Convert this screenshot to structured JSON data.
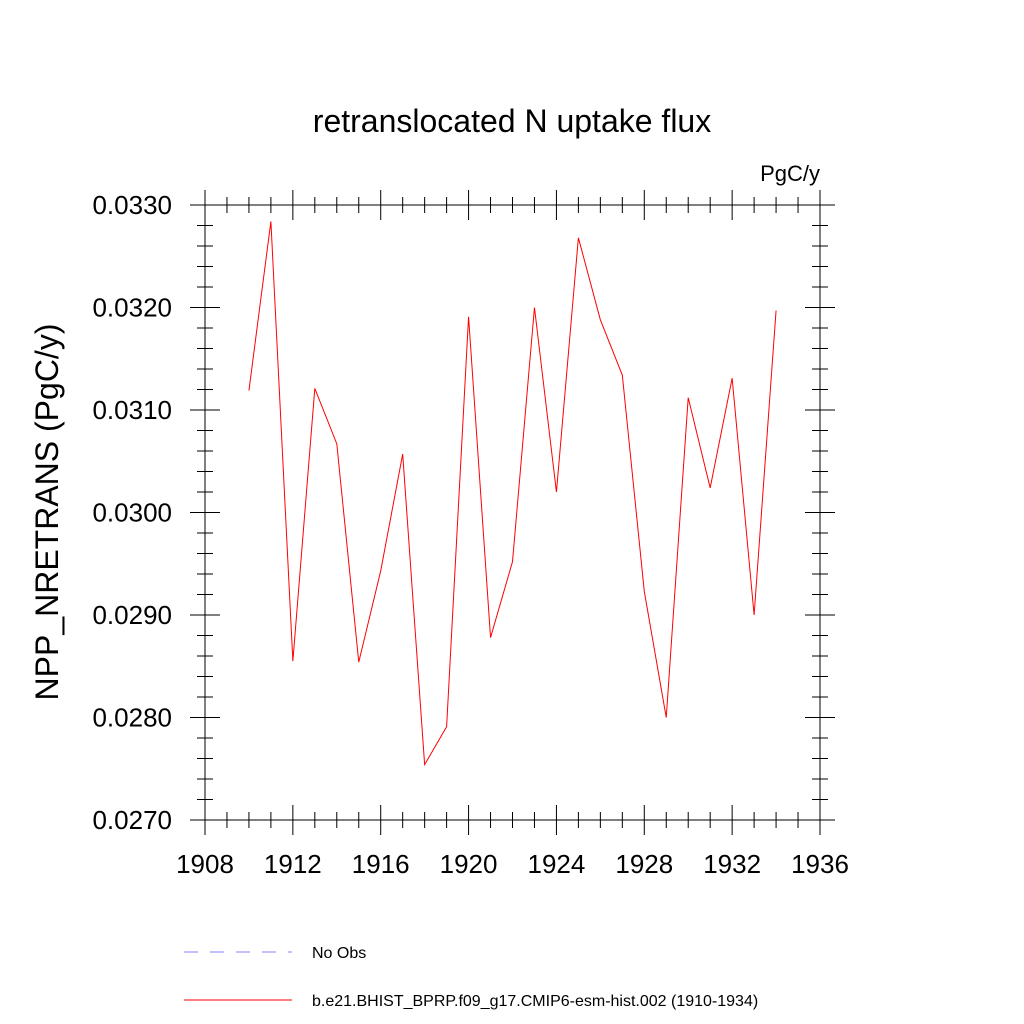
{
  "chart_data": {
    "type": "line",
    "title": "retranslocated N uptake flux",
    "units_label": "PgC/y",
    "xlabel": "",
    "ylabel": "NPP_NRETRANS  (PgC/y)",
    "xlim": [
      1908,
      1936
    ],
    "ylim": [
      0.027,
      0.033
    ],
    "x_ticks": [
      1908,
      1912,
      1916,
      1920,
      1924,
      1928,
      1932,
      1936
    ],
    "x_tick_labels": [
      "1908",
      "1912",
      "1916",
      "1920",
      "1924",
      "1928",
      "1932",
      "1936"
    ],
    "y_ticks": [
      0.027,
      0.028,
      0.029,
      0.03,
      0.031,
      0.032,
      0.033
    ],
    "y_tick_labels": [
      "0.0270",
      "0.0280",
      "0.0290",
      "0.0300",
      "0.0310",
      "0.0320",
      "0.0330"
    ],
    "grid": false,
    "legend_position": "bottom",
    "series": [
      {
        "name": "b.e21.BHIST_BPRP.f09_g17.CMIP6-esm-hist.002 (1910-1934)",
        "color": "#ff0000",
        "style": "solid",
        "x": [
          1910,
          1911,
          1912,
          1913,
          1914,
          1915,
          1916,
          1917,
          1918,
          1919,
          1920,
          1921,
          1922,
          1923,
          1924,
          1925,
          1926,
          1927,
          1928,
          1929,
          1930,
          1931,
          1932,
          1933,
          1934
        ],
        "values": [
          0.03119,
          0.03284,
          0.02855,
          0.03121,
          0.03067,
          0.02854,
          0.02943,
          0.03057,
          0.02754,
          0.02791,
          0.03191,
          0.02878,
          0.02952,
          0.032,
          0.0302,
          0.03268,
          0.03188,
          0.03134,
          0.02923,
          0.028,
          0.03112,
          0.03024,
          0.03131,
          0.029,
          0.03197
        ]
      }
    ],
    "legend": [
      {
        "label": "No Obs",
        "color": "#8080ff",
        "style": "dashed"
      },
      {
        "label": "b.e21.BHIST_BPRP.f09_g17.CMIP6-esm-hist.002 (1910-1934)",
        "color": "#ff0000",
        "style": "solid"
      }
    ]
  }
}
